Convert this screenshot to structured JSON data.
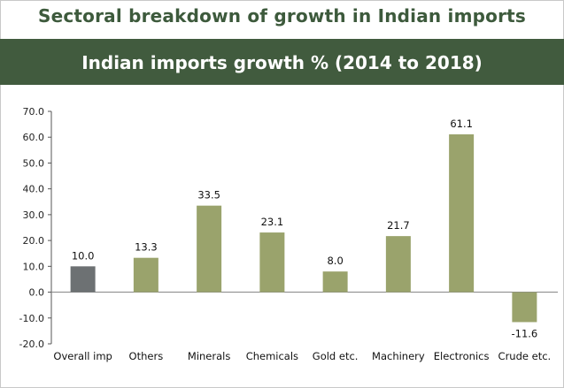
{
  "title": "Sectoral breakdown of growth in Indian imports",
  "subtitle": "Indian imports growth % (2014 to 2018)",
  "colors": {
    "banner": "#415b3e",
    "title_text": "#3d5a3c",
    "highlight_bar": "#6d7173",
    "bar": "#9aa36c"
  },
  "chart_data": {
    "type": "bar",
    "categories": [
      "Overall imp",
      "Others",
      "Minerals",
      "Chemicals",
      "Gold etc.",
      "Machinery",
      "Electronics",
      "Crude etc."
    ],
    "values": [
      10.0,
      13.3,
      33.5,
      23.1,
      8.0,
      21.7,
      61.1,
      -11.6
    ],
    "data_labels": [
      "10.0",
      "13.3",
      "33.5",
      "23.1",
      "8.0",
      "21.7",
      "61.1",
      "-11.6"
    ],
    "highlight_index": 0,
    "ylim": [
      -20,
      70
    ],
    "yticks": [
      -20,
      -10,
      0,
      10,
      20,
      30,
      40,
      50,
      60,
      70
    ],
    "ytick_labels": [
      "-20.0",
      "-10.0",
      "0.0",
      "10.0",
      "20.0",
      "30.0",
      "40.0",
      "50.0",
      "60.0",
      "70.0"
    ],
    "grid": false,
    "legend": "none"
  }
}
